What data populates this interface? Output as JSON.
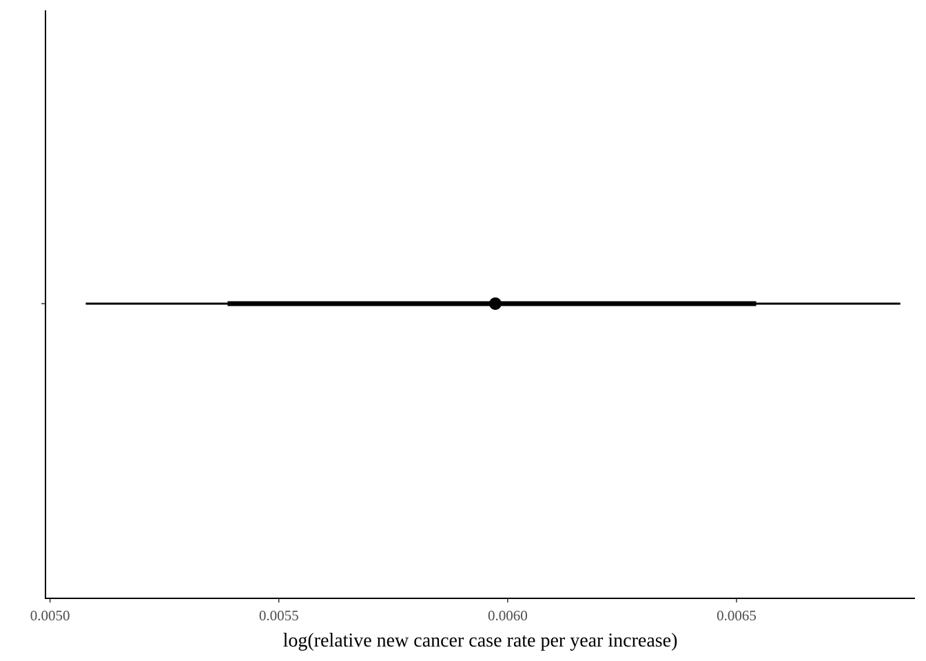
{
  "chart_data": {
    "type": "interval",
    "title": "",
    "xlabel": "log(relative new cancer case rate per year increase)",
    "ylabel": "",
    "xlim": [
      0.00499,
      0.00689
    ],
    "x_ticks": [
      {
        "value": 0.005,
        "label": "0.0050"
      },
      {
        "value": 0.0055,
        "label": "0.0055"
      },
      {
        "value": 0.006,
        "label": "0.0060"
      },
      {
        "value": 0.0065,
        "label": "0.0065"
      }
    ],
    "intervals": [
      {
        "point": 0.005973,
        "inner": [
          0.005388,
          0.006543
        ],
        "outer": [
          0.005078,
          0.006858
        ]
      }
    ],
    "grid": false,
    "legend": "none",
    "color": "#000000"
  }
}
